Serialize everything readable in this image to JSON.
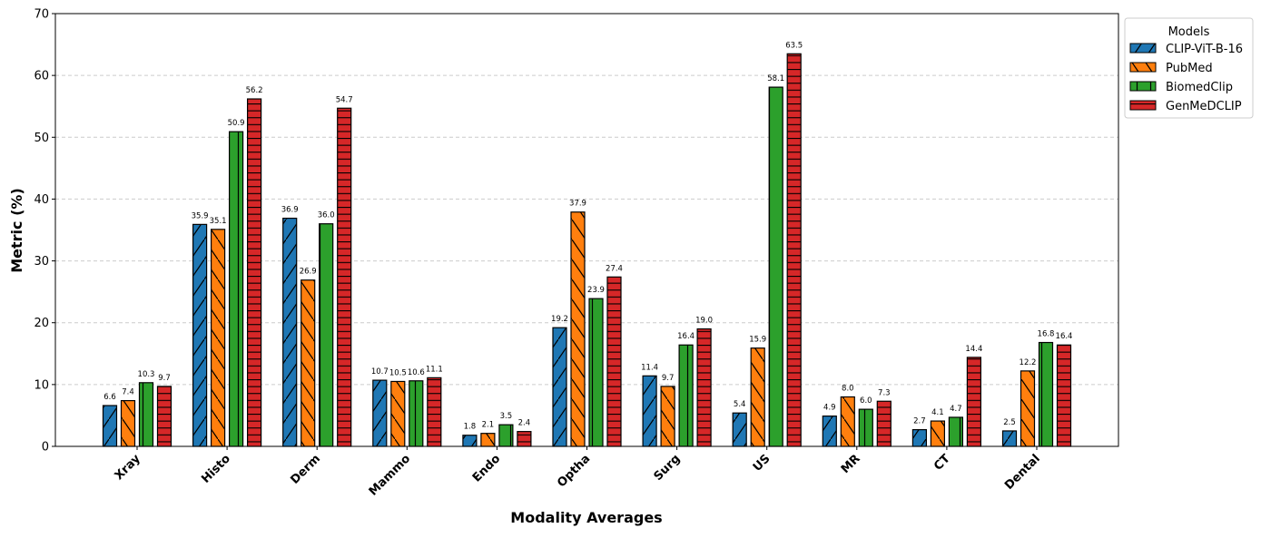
{
  "chart_data": {
    "type": "bar",
    "title": "",
    "xlabel": "Modality Averages",
    "ylabel": "Metric (%)",
    "ylim": [
      0,
      70
    ],
    "yticks": [
      "0",
      "10",
      "20",
      "30",
      "40",
      "50",
      "60",
      "70"
    ],
    "grid": "y, dashed",
    "legend": {
      "title": "Models",
      "placement": "outside top-right"
    },
    "categories": [
      "Xray",
      "Histo",
      "Derm",
      "Mammo",
      "Endo",
      "Optha",
      "Surg",
      "US",
      "MR",
      "CT",
      "Dental"
    ],
    "series": [
      {
        "name": "CLIP-ViT-B-16",
        "color": "#1f77b4",
        "hatch": "/",
        "values": [
          6.6,
          35.9,
          36.9,
          10.7,
          1.8,
          19.2,
          11.4,
          5.4,
          4.9,
          2.7,
          2.5
        ]
      },
      {
        "name": "PubMed",
        "color": "#ff7f0e",
        "hatch": "\\",
        "values": [
          7.4,
          35.1,
          26.9,
          10.5,
          2.1,
          37.9,
          9.7,
          15.9,
          8.0,
          4.1,
          12.2
        ]
      },
      {
        "name": "BiomedClip",
        "color": "#2ca02c",
        "hatch": "|",
        "values": [
          10.3,
          50.9,
          36.0,
          10.6,
          3.5,
          23.9,
          16.4,
          58.1,
          6.0,
          4.7,
          16.8
        ]
      },
      {
        "name": "GenMeDCLIP",
        "color": "#d62728",
        "hatch": "+",
        "values": [
          9.7,
          56.2,
          54.7,
          11.1,
          2.4,
          27.4,
          19.0,
          63.5,
          7.3,
          14.4,
          16.4
        ]
      }
    ]
  }
}
